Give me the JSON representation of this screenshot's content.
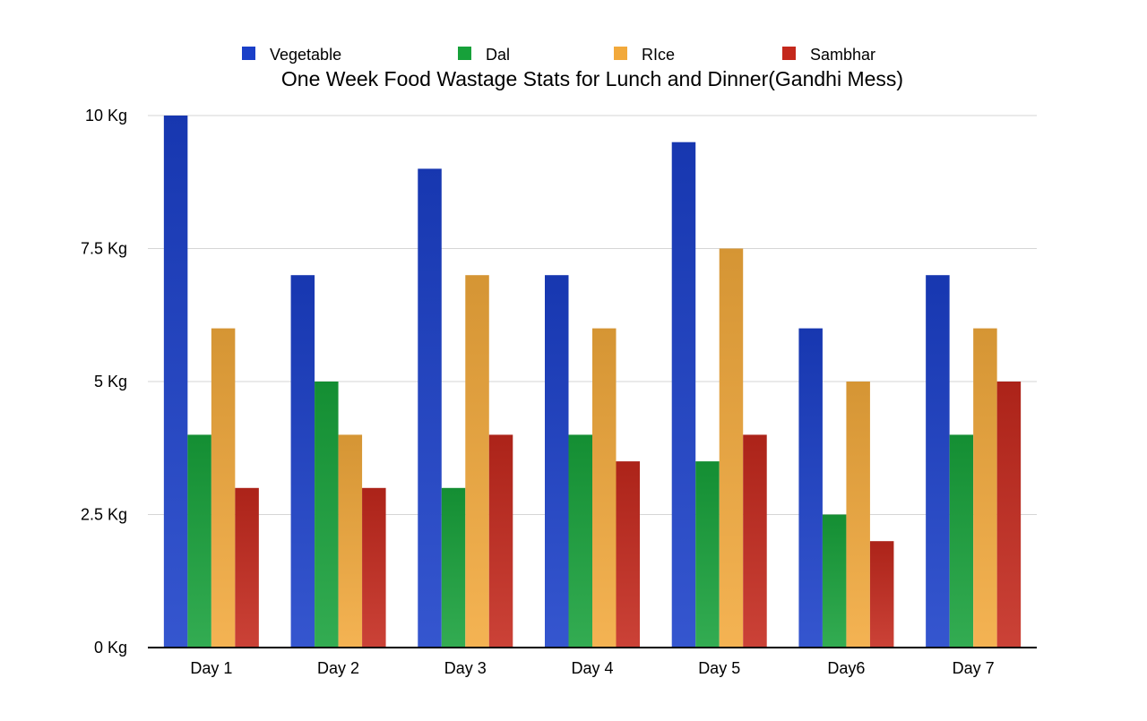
{
  "chart_data": {
    "type": "bar",
    "title": "One Week Food Wastage Stats for Lunch and Dinner(Gandhi Mess)",
    "xlabel": "",
    "ylabel": "",
    "categories": [
      "Day 1",
      "Day 2",
      "Day 3",
      "Day 4",
      "Day 5",
      "Day6",
      "Day 7"
    ],
    "series": [
      {
        "name": "Vegetable",
        "color": "#1a3fc8",
        "values": [
          10,
          7,
          9,
          7,
          9.5,
          6,
          7
        ]
      },
      {
        "name": "Dal",
        "color": "#17a13a",
        "values": [
          4,
          5,
          3,
          4,
          3.5,
          2.5,
          4
        ]
      },
      {
        "name": "RIce",
        "color": "#f2a93b",
        "values": [
          6,
          4,
          7,
          6,
          7.5,
          5,
          6
        ]
      },
      {
        "name": "Sambhar",
        "color": "#c4281c",
        "values": [
          3,
          3,
          4,
          3.5,
          4,
          2,
          5
        ]
      }
    ],
    "ylim": [
      0,
      10
    ],
    "yticks": [
      {
        "value": 0,
        "label": "0 Kg"
      },
      {
        "value": 2.5,
        "label": "2.5 Kg"
      },
      {
        "value": 5,
        "label": "5 Kg"
      },
      {
        "value": 7.5,
        "label": "7.5 Kg"
      },
      {
        "value": 10,
        "label": "10 Kg"
      }
    ],
    "grid": true,
    "legend": "top"
  }
}
